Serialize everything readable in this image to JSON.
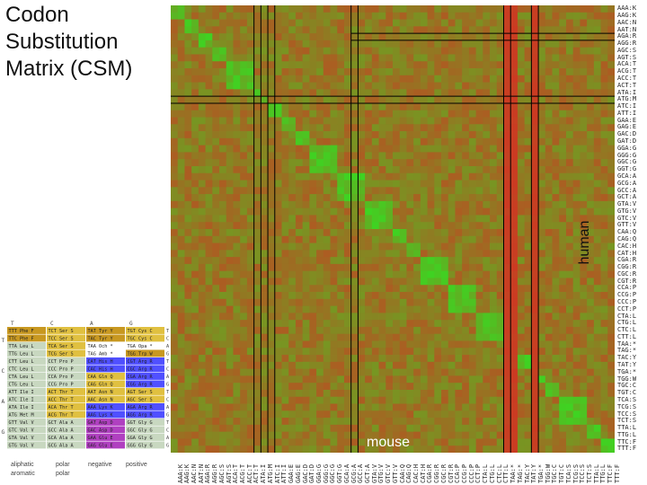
{
  "title": "Codon\nSubstitution\nMatrix (CSM)",
  "chart_data": {
    "type": "heatmap",
    "title": "Codon Substitution Matrix (CSM)",
    "xlabel": "mouse",
    "ylabel": "human",
    "rows": [
      "AAA:K",
      "AAG:K",
      "AAC:N",
      "AAT:N",
      "AGA:R",
      "AGG:R",
      "AGC:S",
      "AGT:S",
      "ACA:T",
      "ACG:T",
      "ACC:T",
      "ACT:T",
      "ATA:I",
      "ATG:M",
      "ATC:I",
      "ATT:I",
      "GAA:E",
      "GAG:E",
      "GAC:D",
      "GAT:D",
      "GGA:G",
      "GGG:G",
      "GGC:G",
      "GGT:G",
      "GCA:A",
      "GCG:A",
      "GCC:A",
      "GCT:A",
      "GTA:V",
      "GTG:V",
      "GTC:V",
      "GTT:V",
      "CAA:Q",
      "CAG:Q",
      "CAC:H",
      "CAT:H",
      "CGA:R",
      "CGG:R",
      "CGC:R",
      "CGT:R",
      "CCA:P",
      "CCG:P",
      "CCC:P",
      "CCT:P",
      "CTA:L",
      "CTG:L",
      "CTC:L",
      "CTT:L",
      "TAA:*",
      "TAG:*",
      "TAC:Y",
      "TAT:Y",
      "TGA:*",
      "TGG:W",
      "TGC:C",
      "TGT:C",
      "TCA:S",
      "TCG:S",
      "TCC:S",
      "TCT:S",
      "TTA:L",
      "TTG:L",
      "TTC:F",
      "TTT:F"
    ],
    "cols": [
      "AAA:K",
      "AAG:K",
      "AAC:N",
      "AAT:N",
      "AGA:R",
      "AGG:R",
      "AGC:S",
      "AGT:S",
      "ACA:T",
      "ACG:T",
      "ACC:T",
      "ACT:T",
      "ATA:I",
      "ATG:M",
      "ATC:I",
      "ATT:I",
      "GAA:E",
      "GAG:E",
      "GAC:D",
      "GAT:D",
      "GGA:G",
      "GGG:G",
      "GGC:G",
      "GGT:G",
      "GCA:A",
      "GCG:A",
      "GCC:A",
      "GCT:A",
      "GTA:V",
      "GTG:V",
      "GTC:V",
      "GTT:V",
      "CAA:Q",
      "CAG:Q",
      "CAC:H",
      "CAT:H",
      "CGA:R",
      "CGG:R",
      "CGC:R",
      "CGT:R",
      "CCA:P",
      "CCG:P",
      "CCC:P",
      "CCT:P",
      "CTA:L",
      "CTG:L",
      "CTC:L",
      "CTT:L",
      "TAA:*",
      "TAG:*",
      "TAC:Y",
      "TAT:Y",
      "TGA:*",
      "TGG:W",
      "TGC:C",
      "TGT:C",
      "TCA:S",
      "TCG:S",
      "TCC:S",
      "TCT:S",
      "TTA:L",
      "TTG:L",
      "TTC:F",
      "TTT:F"
    ],
    "groups": [
      [
        0,
        2
      ],
      [
        2,
        4
      ],
      [
        4,
        6
      ],
      [
        6,
        8
      ],
      [
        8,
        12
      ],
      [
        12,
        13
      ],
      [
        13,
        14
      ],
      [
        14,
        16
      ],
      [
        16,
        18
      ],
      [
        18,
        20
      ],
      [
        20,
        24
      ],
      [
        24,
        28
      ],
      [
        28,
        32
      ],
      [
        32,
        34
      ],
      [
        34,
        36
      ],
      [
        36,
        40
      ],
      [
        40,
        44
      ],
      [
        44,
        48
      ],
      [
        48,
        50
      ],
      [
        50,
        52
      ],
      [
        52,
        53
      ],
      [
        53,
        54
      ],
      [
        54,
        56
      ],
      [
        56,
        60
      ],
      [
        60,
        62
      ],
      [
        62,
        64
      ]
    ],
    "stop_cols": [
      48,
      49,
      52
    ],
    "colors": {
      "high": "#22ee22",
      "mid": "#6a8a2a",
      "low": "#dd2a1a",
      "stop": "#ee1a10"
    }
  },
  "highlight_lines": {
    "rows": [
      13
    ],
    "cols": [
      12,
      13,
      14,
      15,
      26,
      27,
      48,
      49,
      52,
      53
    ],
    "color": "#000000"
  },
  "codon_table": {
    "headers": [
      "T",
      "C",
      "A",
      "G"
    ],
    "rows": [
      [
        "TTT Phe F",
        "TCT Ser S",
        "TAT Tyr Y",
        "TGT Cys C"
      ],
      [
        "TTC Phe F",
        "TCC Ser S",
        "TAC Tyr Y",
        "TGC Cys C"
      ],
      [
        "TTA Leu L",
        "TCA Ser S",
        "TAA Och *",
        "TGA Opa *"
      ],
      [
        "TTG Leu L",
        "TCG Ser S",
        "TAG Amb *",
        "TGG Trp W"
      ],
      [
        "CTT Leu L",
        "CCT Pro P",
        "CAT His H",
        "CGT Arg R"
      ],
      [
        "CTC Leu L",
        "CCC Pro P",
        "CAC His H",
        "CGC Arg R"
      ],
      [
        "CTA Leu L",
        "CCA Pro P",
        "CAA Gln Q",
        "CGA Arg R"
      ],
      [
        "CTG Leu L",
        "CCG Pro P",
        "CAG Gln Q",
        "CGG Arg R"
      ],
      [
        "ATT Ile I",
        "ACT Thr T",
        "AAT Asn N",
        "AGT Ser S"
      ],
      [
        "ATC Ile I",
        "ACC Thr T",
        "AAC Asn N",
        "AGC Ser S"
      ],
      [
        "ATA Ile I",
        "ACA Thr T",
        "AAA Lys K",
        "AGA Arg R"
      ],
      [
        "ATG Met M",
        "ACG Thr T",
        "AAG Lys K",
        "AGG Arg R"
      ],
      [
        "GTT Val V",
        "GCT Ala A",
        "GAT Asp D",
        "GGT Gly G"
      ],
      [
        "GTC Val V",
        "GCC Ala A",
        "GAC Asp D",
        "GGC Gly G"
      ],
      [
        "GTA Val V",
        "GCA Ala A",
        "GAA Glu E",
        "GGA Gly G"
      ],
      [
        "GTG Val V",
        "GCG Ala A",
        "GAG Glu E",
        "GGG Gly G"
      ]
    ],
    "row_letters": [
      "T",
      "C",
      "A",
      "G"
    ],
    "third_letters": [
      "T",
      "C",
      "A",
      "G"
    ]
  },
  "legend": {
    "items": [
      "aliphatic",
      "polar",
      "negative",
      "positive",
      "aromatic",
      "polar"
    ],
    "colors": {
      "aliphatic": "#c8d8c0",
      "aromatic": "#c89820",
      "polar": "#e0c040",
      "negative": "#b040c0",
      "positive": "#5050ff"
    }
  }
}
